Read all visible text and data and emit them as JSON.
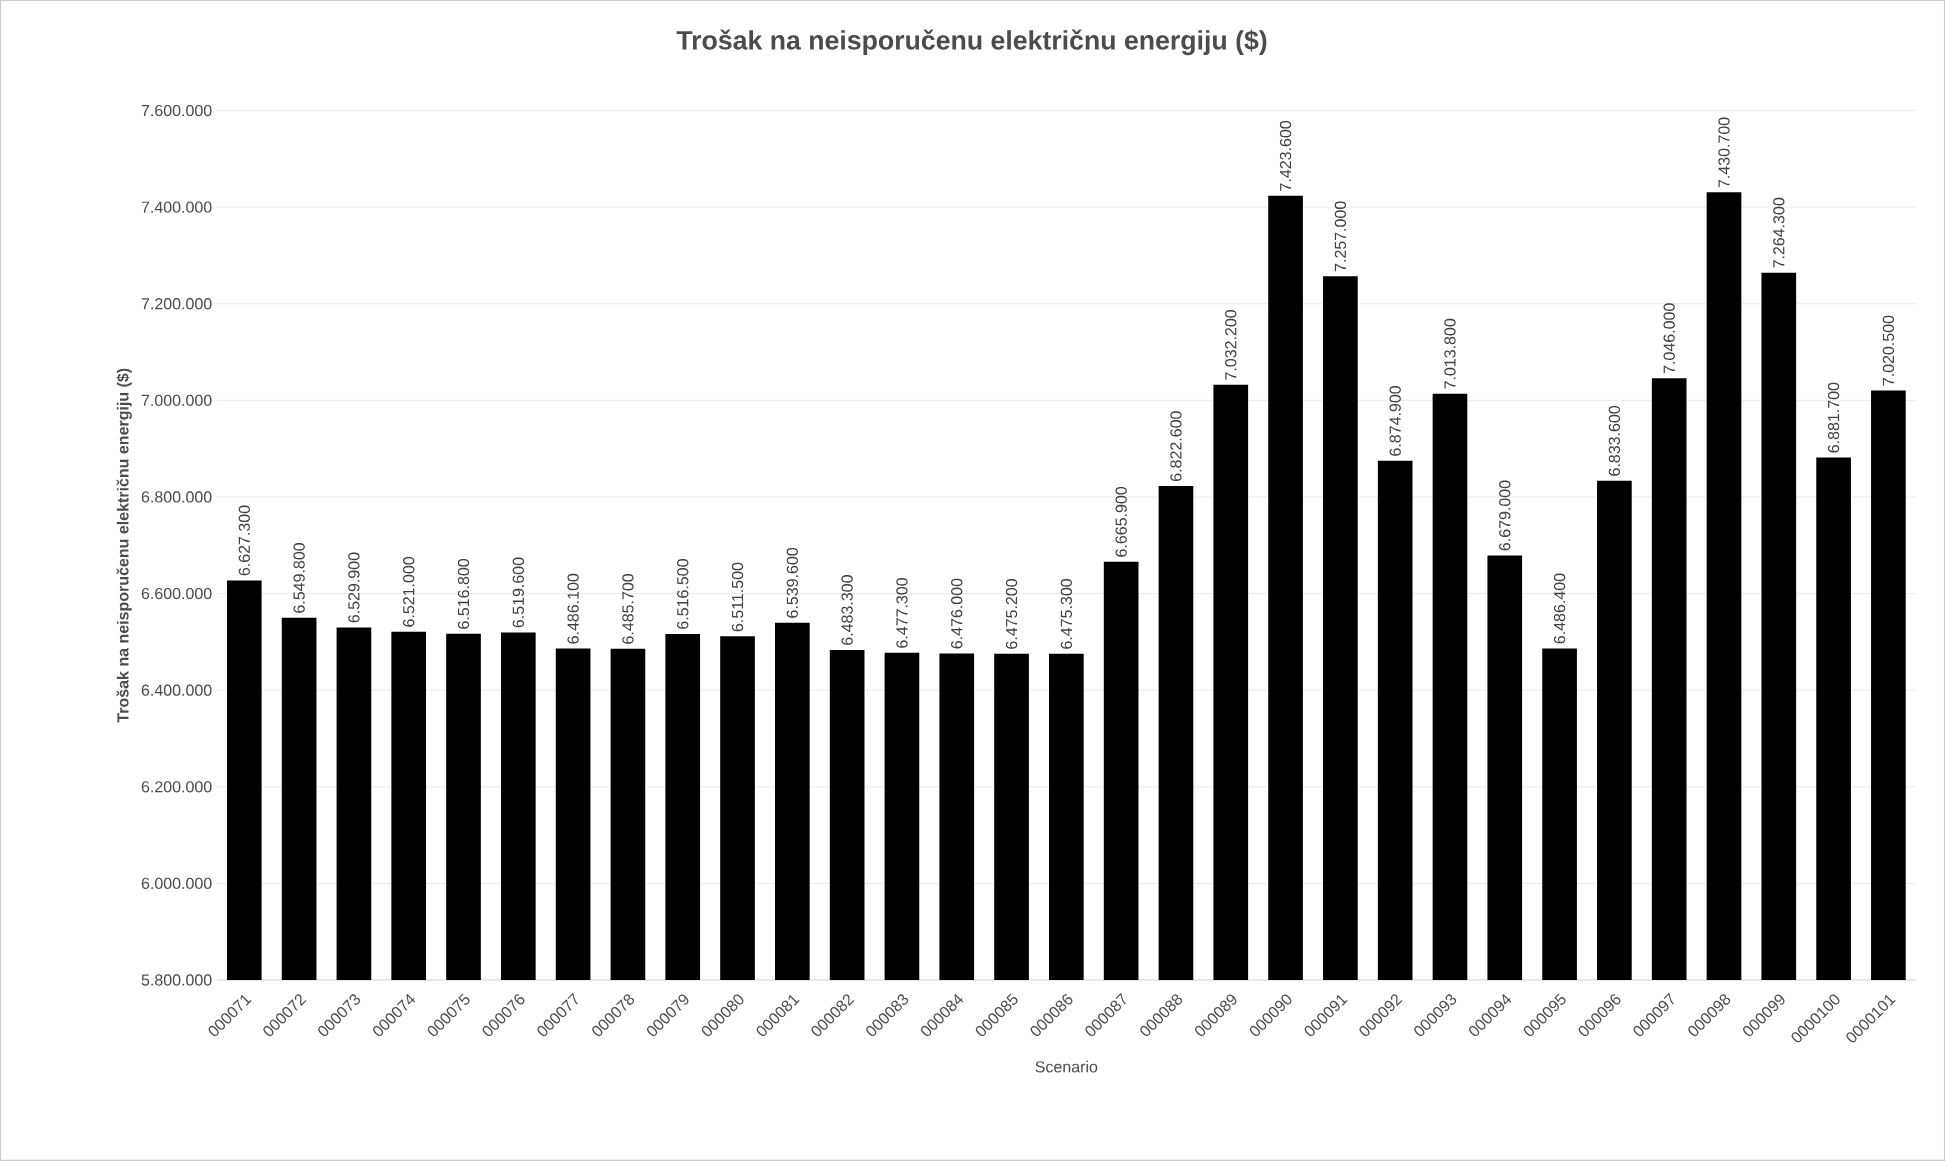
{
  "chart_data": {
    "type": "bar",
    "title": "Trošak na neisporučenu električnu energiju ($)",
    "xlabel": "Scenario",
    "ylabel": "Trošak na neisporučenu električnu energiju ($)",
    "categories": [
      "000071",
      "000072",
      "000073",
      "000074",
      "000075",
      "000076",
      "000077",
      "000078",
      "000079",
      "000080",
      "000081",
      "000082",
      "000083",
      "000084",
      "000085",
      "000086",
      "000087",
      "000088",
      "000089",
      "000090",
      "000091",
      "000092",
      "000093",
      "000094",
      "000095",
      "000096",
      "000097",
      "000098",
      "000099",
      "0000100",
      "0000101"
    ],
    "values": [
      6627300,
      6549800,
      6529900,
      6521000,
      6516800,
      6519600,
      6486100,
      6485700,
      6516500,
      6511500,
      6539600,
      6483300,
      6477300,
      6476000,
      6475200,
      6475300,
      6665900,
      6822600,
      7032200,
      7423600,
      7257000,
      6874900,
      7013800,
      6679000,
      6486400,
      6833600,
      7046000,
      7430700,
      7264300,
      6881700,
      7020500
    ],
    "value_labels": [
      "6.627.300",
      "6.549.800",
      "6.529.900",
      "6.521.000",
      "6.516.800",
      "6.519.600",
      "6.486.100",
      "6.485.700",
      "6.516.500",
      "6.511.500",
      "6.539.600",
      "6.483.300",
      "6.477.300",
      "6.476.000",
      "6.475.200",
      "6.475.300",
      "6.665.900",
      "6.822.600",
      "7.032.200",
      "7.423.600",
      "7.257.000",
      "6.874.900",
      "7.013.800",
      "6.679.000",
      "6.486.400",
      "6.833.600",
      "7.046.000",
      "7.430.700",
      "7.264.300",
      "6.881.700",
      "7.020.500"
    ],
    "color": "#000000",
    "ylim": [
      5800000,
      7600000
    ],
    "yticks": [
      {
        "value": 5800000,
        "label": "5.800.000"
      },
      {
        "value": 6000000,
        "label": "6.000.000"
      },
      {
        "value": 6200000,
        "label": "6.200.000"
      },
      {
        "value": 6400000,
        "label": "6.400.000"
      },
      {
        "value": 6600000,
        "label": "6.600.000"
      },
      {
        "value": 6800000,
        "label": "6.800.000"
      },
      {
        "value": 7000000,
        "label": "7.000.000"
      },
      {
        "value": 7200000,
        "label": "7.200.000"
      },
      {
        "value": 7400000,
        "label": "7.400.000"
      },
      {
        "value": 7600000,
        "label": "7.600.000"
      }
    ],
    "grid": "y"
  }
}
